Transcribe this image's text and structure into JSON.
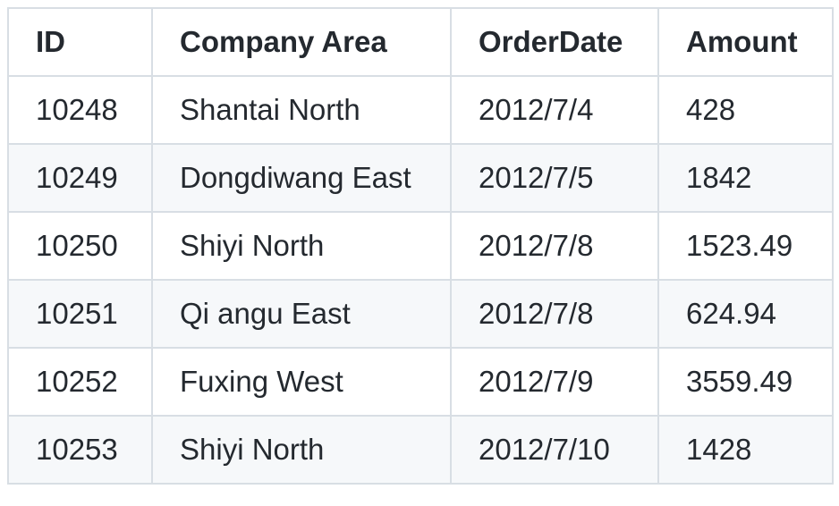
{
  "table": {
    "headers": [
      "ID",
      "Company Area",
      "OrderDate",
      "Amount"
    ],
    "rows": [
      [
        "10248",
        "Shantai North",
        "2012/7/4",
        "428"
      ],
      [
        "10249",
        "Dongdiwang East",
        "2012/7/5",
        "1842"
      ],
      [
        "10250",
        "Shiyi North",
        "2012/7/8",
        "1523.49"
      ],
      [
        "10251",
        "Qi angu East",
        "2012/7/8",
        "624.94"
      ],
      [
        "10252",
        "Fuxing West",
        "2012/7/9",
        "3559.49"
      ],
      [
        "10253",
        "Shiyi North",
        "2012/7/10",
        "1428"
      ]
    ]
  },
  "colors": {
    "border": "#d8dee4",
    "stripe": "#f6f8fa",
    "text": "#24292f",
    "background": "#ffffff"
  }
}
